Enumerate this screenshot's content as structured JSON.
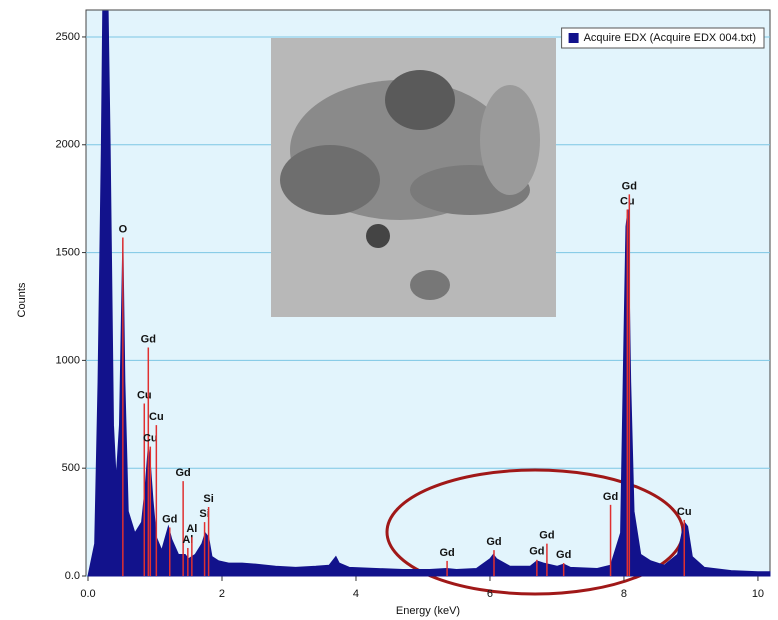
{
  "chart_data": {
    "type": "area",
    "xlabel": "Energy (keV)",
    "ylabel": "Counts",
    "xlim": [
      -0.03,
      10.18
    ],
    "ylim": [
      0,
      2625
    ],
    "xticks": [
      {
        "value": 0,
        "label": "0.0"
      },
      2,
      4,
      6,
      8,
      10
    ],
    "yticks": [
      {
        "value": 0,
        "label": "0.0"
      },
      500,
      1000,
      1500,
      2000,
      2500
    ],
    "grid": true,
    "legend": "upper right",
    "series": [
      {
        "name": "Acquire EDX (Acquire EDX 004.txt)",
        "color": "#12128c",
        "x": [
          0.0,
          0.1,
          0.15,
          0.2,
          0.22,
          0.3,
          0.33,
          0.38,
          0.42,
          0.47,
          0.52,
          0.55,
          0.6,
          0.7,
          0.8,
          0.85,
          0.9,
          0.93,
          0.97,
          1.02,
          1.1,
          1.2,
          1.25,
          1.35,
          1.45,
          1.5,
          1.6,
          1.7,
          1.75,
          1.8,
          1.85,
          1.95,
          2.1,
          2.3,
          2.5,
          2.8,
          3.1,
          3.4,
          3.6,
          3.7,
          3.75,
          3.9,
          4.3,
          4.7,
          5.1,
          5.35,
          5.5,
          5.8,
          6.0,
          6.05,
          6.1,
          6.3,
          6.6,
          6.7,
          6.8,
          7.0,
          7.1,
          7.2,
          7.6,
          7.8,
          7.95,
          8.0,
          8.03,
          8.06,
          8.1,
          8.15,
          8.25,
          8.4,
          8.6,
          8.8,
          8.9,
          8.95,
          9.02,
          9.2,
          9.6,
          10.0,
          10.18
        ],
        "values": [
          0,
          150,
          900,
          2000,
          2620,
          2620,
          2000,
          700,
          450,
          700,
          1560,
          900,
          300,
          200,
          250,
          400,
          600,
          520,
          350,
          180,
          120,
          230,
          170,
          100,
          100,
          80,
          100,
          150,
          200,
          180,
          90,
          70,
          60,
          60,
          55,
          45,
          40,
          45,
          50,
          90,
          60,
          40,
          35,
          30,
          30,
          35,
          30,
          35,
          80,
          100,
          80,
          45,
          45,
          70,
          60,
          45,
          55,
          40,
          35,
          50,
          200,
          1100,
          1620,
          1700,
          900,
          300,
          100,
          70,
          50,
          100,
          250,
          230,
          90,
          40,
          25,
          20,
          20
        ]
      }
    ],
    "markers": [
      {
        "label": "O",
        "x": 0.52,
        "value": 1570
      },
      {
        "label": "Cu",
        "x": 0.84,
        "value": 800
      },
      {
        "label": "Gd",
        "x": 0.9,
        "value": 1060
      },
      {
        "label": "Cu",
        "x": 0.93,
        "value": 600
      },
      {
        "label": "Cu",
        "x": 1.02,
        "value": 700
      },
      {
        "label": "Gd",
        "x": 1.22,
        "value": 225
      },
      {
        "label": "Gd",
        "x": 1.42,
        "value": 440
      },
      {
        "label": "Al",
        "x": 1.49,
        "value": 130
      },
      {
        "label": "Al",
        "x": 1.55,
        "value": 180
      },
      {
        "label": "Si",
        "x": 1.74,
        "value": 250
      },
      {
        "label": "Si",
        "x": 1.8,
        "value": 320
      },
      {
        "label": "Gd",
        "x": 5.36,
        "value": 70
      },
      {
        "label": "Gd",
        "x": 6.06,
        "value": 120
      },
      {
        "label": "Gd",
        "x": 6.7,
        "value": 75
      },
      {
        "label": "Gd",
        "x": 6.85,
        "value": 150
      },
      {
        "label": "Gd",
        "x": 7.1,
        "value": 60
      },
      {
        "label": "Gd",
        "x": 7.8,
        "value": 330
      },
      {
        "label": "Cu",
        "x": 8.05,
        "value": 1700
      },
      {
        "label": "Gd",
        "x": 8.08,
        "value": 1770
      },
      {
        "label": "Cu",
        "x": 8.9,
        "value": 260
      }
    ],
    "marker_color": "#e03030"
  }
}
